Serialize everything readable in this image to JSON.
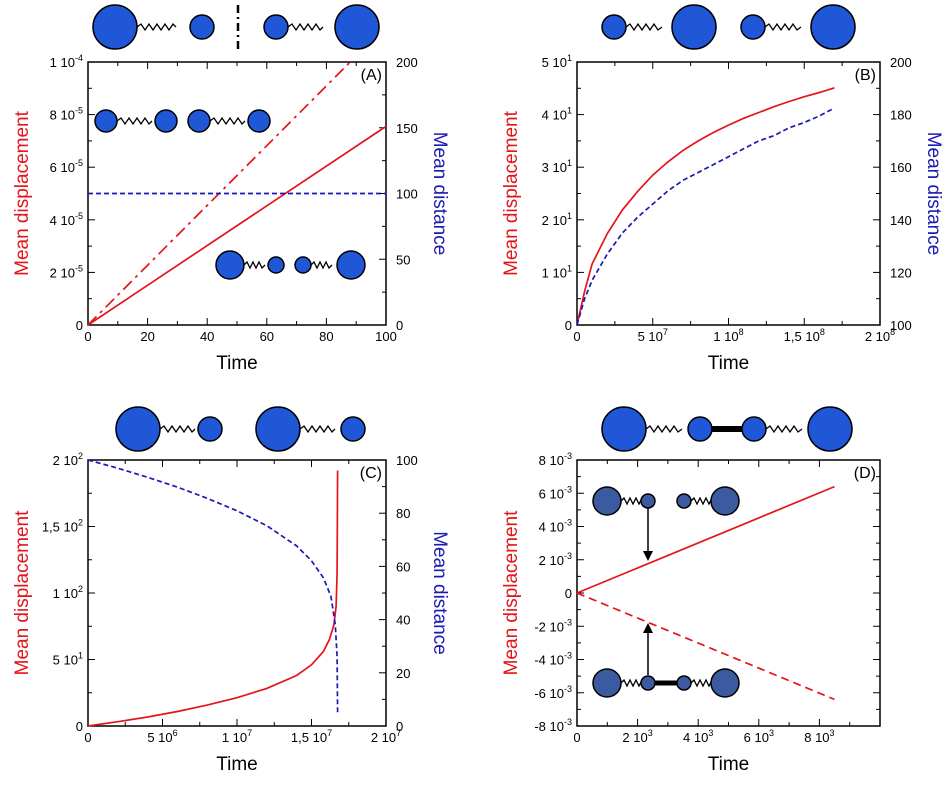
{
  "colors": {
    "red": "#e4141b",
    "blue": "#1a1ab4",
    "sphere": "#1f57d6",
    "sphere_dim": "#3c5aa0"
  },
  "chart_data": [
    {
      "panel": "(A)",
      "type": "line",
      "xlabel": "Time",
      "ylabel": "Mean displacement",
      "ylabel2": "Mean distance",
      "xlim": [
        0,
        100
      ],
      "ylim": [
        0,
        0.0001
      ],
      "ylim2": [
        0,
        200
      ],
      "xticks": [
        "0",
        "20",
        "40",
        "60",
        "80",
        "100"
      ],
      "xtick_values": [
        0,
        20,
        40,
        60,
        80,
        100
      ],
      "yticks": [
        "0",
        "2 10-5",
        "4 10-5",
        "6 10-5",
        "8 10-5",
        "1 10-4"
      ],
      "ytick_values": [
        0,
        2e-05,
        4e-05,
        6e-05,
        8e-05,
        0.0001
      ],
      "y2ticks": [
        "0",
        "50",
        "100",
        "150",
        "200"
      ],
      "y2tick_values": [
        0,
        50,
        100,
        150,
        200
      ],
      "series": [
        {
          "axis": "left",
          "style": "dashdot",
          "color": "red",
          "x": [
            0,
            88
          ],
          "y": [
            0,
            0.0001
          ]
        },
        {
          "axis": "left",
          "style": "solid",
          "color": "red",
          "x": [
            0,
            100
          ],
          "y": [
            0,
            7.55e-05
          ]
        },
        {
          "axis": "right",
          "style": "dashed",
          "color": "blue",
          "x": [
            0,
            100
          ],
          "y": [
            100,
            100
          ]
        }
      ]
    },
    {
      "panel": "(B)",
      "type": "line",
      "xlabel": "Time",
      "ylabel": "Mean displacement",
      "ylabel2": "Mean distance",
      "xlim": [
        0,
        200000000
      ],
      "ylim": [
        0,
        50
      ],
      "ylim2": [
        100,
        200
      ],
      "xticks": [
        "0",
        "5 107",
        "1 108",
        "1,5 108",
        "2 108"
      ],
      "xtick_values": [
        0,
        50000000,
        100000000,
        150000000,
        200000000
      ],
      "yticks": [
        "0",
        "1 101",
        "2 101",
        "3 101",
        "4 101",
        "5 101"
      ],
      "ytick_values": [
        0,
        10,
        20,
        30,
        40,
        50
      ],
      "y2ticks": [
        "100",
        "120",
        "140",
        "160",
        "180",
        "200"
      ],
      "y2tick_values": [
        100,
        120,
        140,
        160,
        180,
        200
      ],
      "series": [
        {
          "axis": "left",
          "style": "solid",
          "color": "red",
          "x": [
            0,
            5000000,
            10000000,
            20000000,
            30000000,
            40000000,
            50000000,
            60000000,
            70000000,
            80000000,
            90000000,
            100000000,
            110000000,
            120000000,
            130000000,
            140000000,
            150000000,
            160000000,
            170000000
          ],
          "y": [
            0,
            6.4,
            11.6,
            17.4,
            21.9,
            25.4,
            28.5,
            31.0,
            33.2,
            35.0,
            36.6,
            38.0,
            39.3,
            40.4,
            41.5,
            42.5,
            43.4,
            44.2,
            45.1
          ]
        },
        {
          "axis": "right",
          "style": "dashed",
          "color": "blue",
          "x": [
            0,
            5000000,
            10000000,
            20000000,
            30000000,
            40000000,
            50000000,
            60000000,
            70000000,
            80000000,
            90000000,
            100000000,
            110000000,
            120000000,
            130000000,
            140000000,
            150000000,
            160000000,
            170000000
          ],
          "y": [
            100,
            110,
            117,
            127,
            135,
            141,
            146,
            151,
            155,
            158,
            161,
            164,
            167,
            170,
            172,
            175,
            177,
            179.5,
            182.5
          ]
        }
      ]
    },
    {
      "panel": "(C)",
      "type": "line",
      "xlabel": "Time",
      "ylabel": "Mean displacement",
      "ylabel2": "Mean distance",
      "xlim": [
        0,
        20000000
      ],
      "ylim": [
        0,
        200
      ],
      "ylim2": [
        0,
        100
      ],
      "xticks": [
        "0",
        "5 106",
        "1 107",
        "1,5 107",
        "2 107"
      ],
      "xtick_values": [
        0,
        5000000,
        10000000,
        15000000,
        20000000
      ],
      "yticks": [
        "0",
        "5 101",
        "1 102",
        "1,5 102",
        "2 102"
      ],
      "ytick_values": [
        0,
        50,
        100,
        150,
        200
      ],
      "y2ticks": [
        "0",
        "20",
        "40",
        "60",
        "80",
        "100"
      ],
      "y2tick_values": [
        0,
        20,
        40,
        60,
        80,
        100
      ],
      "series": [
        {
          "axis": "left",
          "style": "solid",
          "color": "red",
          "x": [
            0,
            2000000,
            4000000,
            6000000,
            8000000,
            10000000,
            12000000,
            14000000,
            15000000,
            15800000,
            16200000,
            16500000,
            16650000,
            16720000,
            16750000
          ],
          "y": [
            0,
            3.2,
            6.8,
            10.9,
            15.7,
            21.3,
            28.3,
            38.0,
            46.0,
            56.0,
            65.0,
            76.0,
            90.0,
            115.0,
            192.0
          ]
        },
        {
          "axis": "right",
          "style": "dashed",
          "color": "blue",
          "x": [
            0,
            2000000,
            4000000,
            6000000,
            8000000,
            10000000,
            12000000,
            14000000,
            15000000,
            15800000,
            16300000,
            16600000,
            16720000,
            16750000
          ],
          "y": [
            100,
            96.9,
            93.5,
            89.8,
            85.6,
            80.9,
            75.3,
            67.7,
            62.1,
            55.7,
            48.8,
            38.1,
            26.0,
            5.0
          ]
        }
      ]
    },
    {
      "panel": "(D)",
      "type": "line",
      "xlabel": "Time",
      "ylabel": "Mean displacement",
      "xlim": [
        0,
        10000
      ],
      "ylim": [
        -0.008,
        0.008
      ],
      "xticks": [
        "0",
        "2 103",
        "4 103",
        "6 103",
        "8 103"
      ],
      "xtick_values": [
        0,
        2000,
        4000,
        6000,
        8000
      ],
      "yticks": [
        "-8 10-3",
        "-6 10-3",
        "-4 10-3",
        "-2 10-3",
        "0",
        "2 10-3",
        "4 10-3",
        "6 10-3",
        "8 10-3"
      ],
      "ytick_values": [
        -0.008,
        -0.006,
        -0.004,
        -0.002,
        0,
        0.002,
        0.004,
        0.006,
        0.008
      ],
      "series": [
        {
          "axis": "left",
          "style": "solid",
          "color": "red",
          "x": [
            0,
            8500
          ],
          "y": [
            0,
            0.0064
          ]
        },
        {
          "axis": "left",
          "style": "dashed",
          "color": "red",
          "x": [
            0,
            8500
          ],
          "y": [
            0,
            -0.0064
          ]
        }
      ]
    }
  ]
}
